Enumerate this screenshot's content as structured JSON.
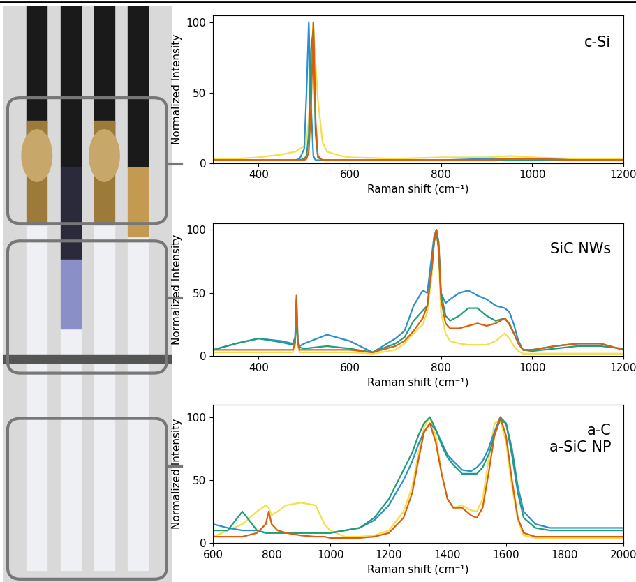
{
  "chart_data": [
    {
      "type": "line",
      "annotation": [
        "c-Si"
      ],
      "x_label": "Raman shift (cm⁻¹)",
      "y_label": "Normalized Intensity",
      "x": [
        300,
        350,
        400,
        450,
        480,
        490,
        500,
        505,
        510,
        515,
        520,
        525,
        530,
        540,
        550,
        580,
        600,
        700,
        800,
        900,
        950,
        1000,
        1100,
        1200
      ],
      "series": [
        {
          "color": "#f2df4a",
          "values": [
            3,
            3,
            4,
            6,
            8,
            10,
            12,
            15,
            30,
            70,
            100,
            70,
            45,
            15,
            8,
            5,
            4,
            3,
            4,
            4,
            5,
            4,
            3,
            3
          ]
        },
        {
          "color": "#2b8fd0",
          "values": [
            2,
            2,
            2,
            2,
            2,
            3,
            10,
            50,
            100,
            40,
            5,
            2,
            2,
            2,
            2,
            2,
            2,
            2,
            2,
            3,
            3,
            3,
            2,
            2
          ]
        },
        {
          "color": "#1f9e7a",
          "values": [
            2,
            2,
            2,
            2,
            2,
            2,
            3,
            5,
            20,
            80,
            95,
            20,
            4,
            2,
            2,
            2,
            2,
            2,
            2,
            2,
            2,
            2,
            2,
            2
          ]
        },
        {
          "color": "#d95f0e",
          "values": [
            2,
            2,
            2,
            2,
            2,
            2,
            2,
            3,
            8,
            40,
            100,
            30,
            5,
            2,
            2,
            2,
            2,
            2,
            2,
            2,
            3,
            3,
            2,
            2
          ]
        }
      ],
      "xlim": [
        300,
        1200
      ],
      "xticks": [
        400,
        600,
        800,
        1000,
        1200
      ],
      "ylim": [
        0,
        105
      ],
      "yticks": [
        0,
        50,
        100
      ]
    },
    {
      "type": "line",
      "annotation": [
        "SiC NWs"
      ],
      "x_label": "Raman shift (cm⁻¹)",
      "y_label": "Normalized Intensity",
      "x": [
        300,
        350,
        400,
        450,
        475,
        480,
        483,
        486,
        490,
        500,
        550,
        600,
        650,
        700,
        720,
        740,
        760,
        770,
        780,
        785,
        790,
        795,
        800,
        810,
        820,
        840,
        860,
        880,
        900,
        920,
        940,
        950,
        960,
        970,
        980,
        1000,
        1050,
        1100,
        1150,
        1200
      ],
      "series": [
        {
          "color": "#f2df4a",
          "values": [
            3,
            3,
            3,
            3,
            3,
            8,
            40,
            8,
            3,
            3,
            3,
            3,
            2,
            5,
            10,
            18,
            25,
            35,
            65,
            95,
            100,
            80,
            35,
            18,
            12,
            10,
            9,
            9,
            9,
            12,
            18,
            14,
            8,
            4,
            2,
            2,
            2,
            2,
            2,
            2
          ]
        },
        {
          "color": "#2b8fd0",
          "values": [
            5,
            10,
            14,
            12,
            10,
            15,
            45,
            12,
            8,
            10,
            17,
            12,
            3,
            14,
            20,
            40,
            52,
            50,
            80,
            95,
            100,
            90,
            50,
            42,
            45,
            50,
            52,
            48,
            45,
            40,
            38,
            35,
            25,
            12,
            5,
            5,
            8,
            10,
            10,
            5
          ]
        },
        {
          "color": "#1f9e7a",
          "values": [
            5,
            10,
            14,
            11,
            9,
            12,
            30,
            10,
            7,
            6,
            8,
            6,
            3,
            10,
            15,
            28,
            36,
            40,
            70,
            90,
            98,
            85,
            50,
            32,
            28,
            32,
            38,
            38,
            32,
            28,
            30,
            25,
            18,
            10,
            5,
            4,
            6,
            8,
            8,
            6
          ]
        },
        {
          "color": "#d95f0e",
          "values": [
            5,
            5,
            5,
            5,
            5,
            10,
            48,
            10,
            5,
            5,
            5,
            5,
            3,
            8,
            12,
            20,
            30,
            40,
            70,
            92,
            100,
            88,
            45,
            26,
            22,
            22,
            24,
            26,
            24,
            26,
            30,
            26,
            18,
            10,
            5,
            5,
            8,
            10,
            10,
            5
          ]
        }
      ],
      "xlim": [
        300,
        1200
      ],
      "xticks": [
        400,
        600,
        800,
        1000,
        1200
      ],
      "ylim": [
        0,
        105
      ],
      "yticks": [
        0,
        50,
        100
      ]
    },
    {
      "type": "line",
      "annotation": [
        "a-C",
        "a-SiC NP"
      ],
      "x_label": "Raman shift (cm⁻¹)",
      "y_label": "Normalized Intensity",
      "x": [
        600,
        650,
        700,
        750,
        780,
        790,
        800,
        820,
        850,
        900,
        950,
        980,
        1000,
        1050,
        1100,
        1150,
        1200,
        1250,
        1280,
        1300,
        1320,
        1340,
        1360,
        1380,
        1400,
        1420,
        1450,
        1480,
        1500,
        1520,
        1540,
        1560,
        1580,
        1600,
        1620,
        1640,
        1660,
        1700,
        1750,
        1800,
        1900,
        2000
      ],
      "series": [
        {
          "color": "#f2df4a",
          "values": [
            5,
            10,
            15,
            25,
            30,
            28,
            22,
            25,
            30,
            32,
            30,
            15,
            10,
            5,
            5,
            6,
            10,
            25,
            45,
            70,
            92,
            100,
            85,
            55,
            35,
            28,
            30,
            26,
            25,
            35,
            65,
            95,
            98,
            80,
            45,
            18,
            6,
            4,
            4,
            4,
            4,
            4
          ]
        },
        {
          "color": "#2b8fd0",
          "values": [
            15,
            12,
            10,
            10,
            8,
            8,
            8,
            8,
            8,
            8,
            8,
            8,
            8,
            10,
            12,
            18,
            30,
            50,
            65,
            78,
            88,
            95,
            90,
            80,
            70,
            65,
            58,
            57,
            60,
            65,
            75,
            88,
            100,
            95,
            75,
            45,
            25,
            15,
            12,
            12,
            12,
            12
          ]
        },
        {
          "color": "#1f9e7a",
          "values": [
            10,
            10,
            25,
            10,
            8,
            8,
            8,
            8,
            8,
            8,
            8,
            8,
            8,
            10,
            12,
            20,
            35,
            58,
            72,
            85,
            95,
            100,
            90,
            78,
            68,
            62,
            55,
            55,
            55,
            60,
            70,
            85,
            98,
            95,
            70,
            40,
            20,
            12,
            10,
            10,
            10,
            10
          ]
        },
        {
          "color": "#d95f0e",
          "values": [
            5,
            5,
            5,
            8,
            15,
            25,
            15,
            10,
            8,
            6,
            5,
            5,
            4,
            4,
            4,
            5,
            8,
            20,
            40,
            65,
            88,
            95,
            80,
            55,
            35,
            28,
            28,
            22,
            20,
            28,
            55,
            85,
            100,
            85,
            50,
            20,
            8,
            5,
            5,
            5,
            5,
            5
          ]
        }
      ],
      "xlim": [
        600,
        2000
      ],
      "xticks": [
        600,
        800,
        1000,
        1200,
        1400,
        1600,
        1800,
        2000
      ],
      "ylim": [
        0,
        110
      ],
      "yticks": [
        0,
        50,
        100
      ]
    }
  ]
}
